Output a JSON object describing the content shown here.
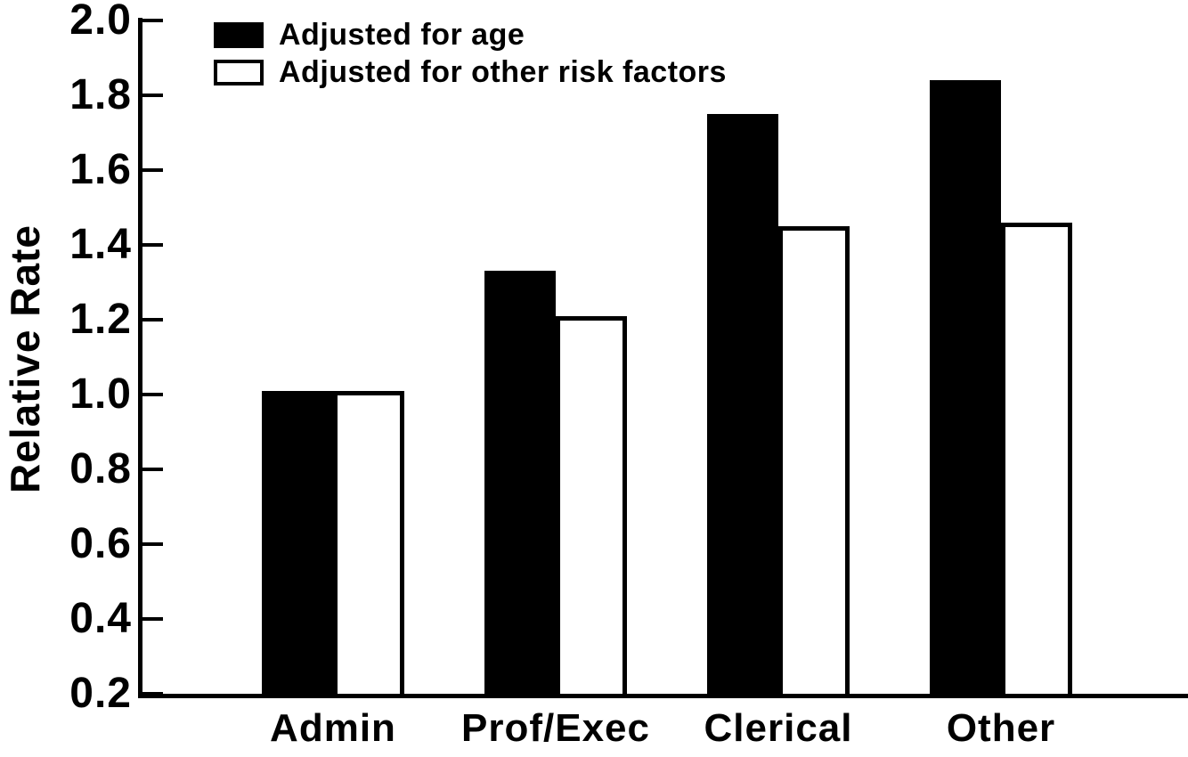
{
  "chart_data": {
    "type": "bar",
    "title": "",
    "xlabel": "",
    "ylabel": "Relative Rate",
    "categories": [
      "Admin",
      "Prof/Exec",
      "Clerical",
      "Other"
    ],
    "series": [
      {
        "name": "Adjusted for age",
        "style": "filled",
        "color": "#000000",
        "values": [
          1.01,
          1.33,
          1.75,
          1.84
        ]
      },
      {
        "name": "Adjusted for other risk factors",
        "style": "hollow",
        "color": "#ffffff",
        "values": [
          1.01,
          1.21,
          1.45,
          1.46
        ]
      }
    ],
    "ylim": [
      0.2,
      2.0
    ],
    "ytick_step": 0.2,
    "ytick_labels": [
      "0.2",
      "0.4",
      "0.6",
      "0.8",
      "1.0",
      "1.2",
      "1.4",
      "1.6",
      "1.8",
      "2.0"
    ],
    "grid": false,
    "legend_position": "top-left",
    "colors": {
      "foreground": "#000000",
      "background": "#ffffff"
    }
  }
}
